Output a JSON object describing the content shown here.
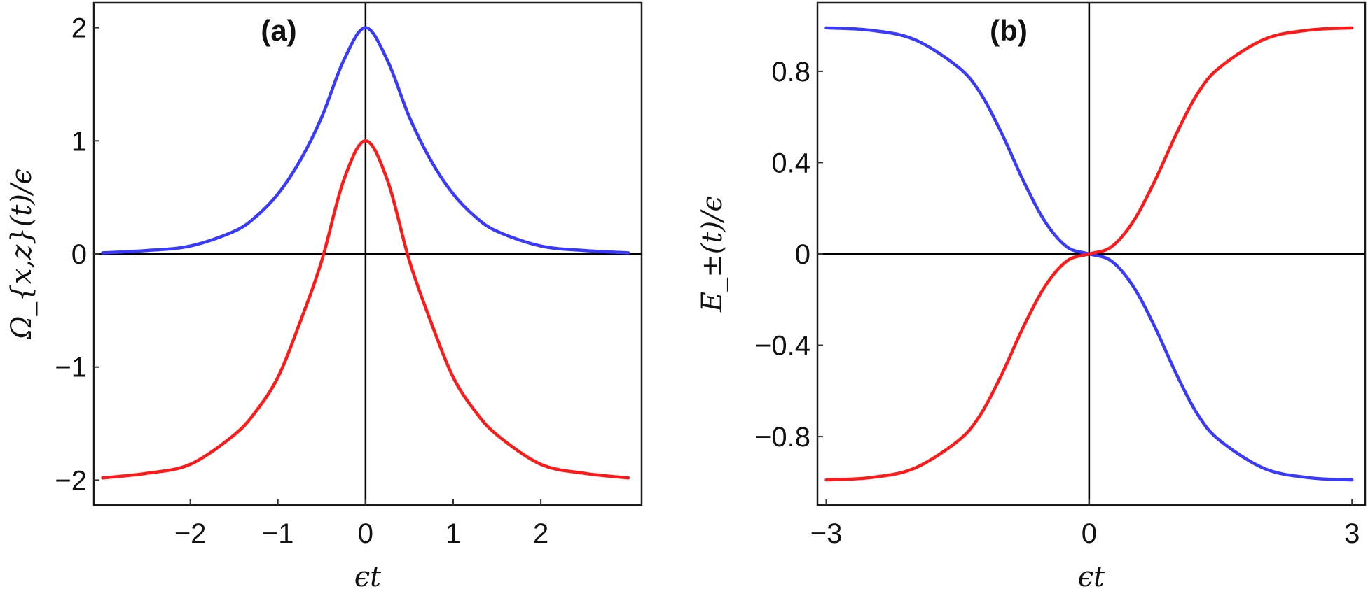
{
  "chart_data": [
    {
      "type": "line",
      "panel_label": "(a)",
      "xlabel": "ϵt",
      "ylabel": "Ω_{x,z}(t)/ϵ",
      "xlim": [
        -3.1,
        3.15
      ],
      "ylim": [
        -2.22,
        2.22
      ],
      "x_ticks": [
        "−2",
        "−1",
        "0",
        "1",
        "2"
      ],
      "x_tick_values": [
        -2,
        -1,
        0,
        1,
        2
      ],
      "y_ticks": [
        "−2",
        "−1",
        "0",
        "1",
        "2"
      ],
      "y_tick_values": [
        -2,
        -1,
        0,
        1,
        2
      ],
      "colors": {
        "blue": "#3a3aff",
        "red": "#ff1a1a"
      },
      "series": [
        {
          "color": "#3a3aff",
          "x": [
            -3,
            -2.5,
            -2,
            -1.5,
            -1.25,
            -1,
            -0.75,
            -0.5,
            -0.25,
            0,
            0.25,
            0.5,
            0.75,
            1,
            1.25,
            1.5,
            2,
            2.5,
            3
          ],
          "y": [
            0.01,
            0.03,
            0.07,
            0.2,
            0.33,
            0.53,
            0.82,
            1.21,
            1.71,
            2.0,
            1.71,
            1.21,
            0.82,
            0.53,
            0.33,
            0.2,
            0.07,
            0.03,
            0.01
          ]
        },
        {
          "color": "#ff1a1a",
          "x": [
            -3,
            -2.5,
            -2,
            -1.5,
            -1.25,
            -1,
            -0.75,
            -0.5,
            -0.25,
            0,
            0.25,
            0.5,
            0.75,
            1,
            1.25,
            1.5,
            2,
            2.5,
            3
          ],
          "y": [
            -1.98,
            -1.94,
            -1.86,
            -1.6,
            -1.39,
            -1.09,
            -0.61,
            -0.06,
            0.65,
            1.0,
            0.65,
            -0.06,
            -0.61,
            -1.09,
            -1.39,
            -1.6,
            -1.86,
            -1.94,
            -1.98
          ]
        }
      ]
    },
    {
      "type": "line",
      "panel_label": "(b)",
      "xlabel": "ϵt",
      "ylabel": "E_±(t)/ϵ",
      "xlim": [
        -3.1,
        3.15
      ],
      "ylim": [
        -1.1,
        1.1
      ],
      "x_ticks": [
        "−3",
        "0",
        "3"
      ],
      "x_tick_values": [
        -3,
        0,
        3
      ],
      "y_ticks": [
        "0.8",
        "0.4",
        "0",
        "−0.4",
        "−0.8"
      ],
      "y_tick_values": [
        0.8,
        0.4,
        0,
        -0.4,
        -0.8
      ],
      "colors": {
        "blue": "#3a3aff",
        "red": "#ff1a1a"
      },
      "series": [
        {
          "color": "#3a3aff",
          "x": [
            -3,
            -2.5,
            -2,
            -1.5,
            -1.25,
            -1,
            -0.75,
            -0.5,
            -0.25,
            0,
            0.25,
            0.5,
            0.75,
            1,
            1.25,
            1.5,
            2,
            2.5,
            3
          ],
          "y": [
            0.99,
            0.98,
            0.94,
            0.82,
            0.71,
            0.53,
            0.32,
            0.14,
            0.03,
            0.0,
            -0.03,
            -0.14,
            -0.32,
            -0.53,
            -0.71,
            -0.82,
            -0.94,
            -0.98,
            -0.99
          ]
        },
        {
          "color": "#ff1a1a",
          "x": [
            -3,
            -2.5,
            -2,
            -1.5,
            -1.25,
            -1,
            -0.75,
            -0.5,
            -0.25,
            0,
            0.25,
            0.5,
            0.75,
            1,
            1.25,
            1.5,
            2,
            2.5,
            3
          ],
          "y": [
            -0.99,
            -0.98,
            -0.94,
            -0.82,
            -0.71,
            -0.53,
            -0.32,
            -0.14,
            -0.03,
            0.0,
            0.03,
            0.14,
            0.32,
            0.53,
            0.71,
            0.82,
            0.94,
            0.98,
            0.99
          ]
        }
      ]
    }
  ]
}
